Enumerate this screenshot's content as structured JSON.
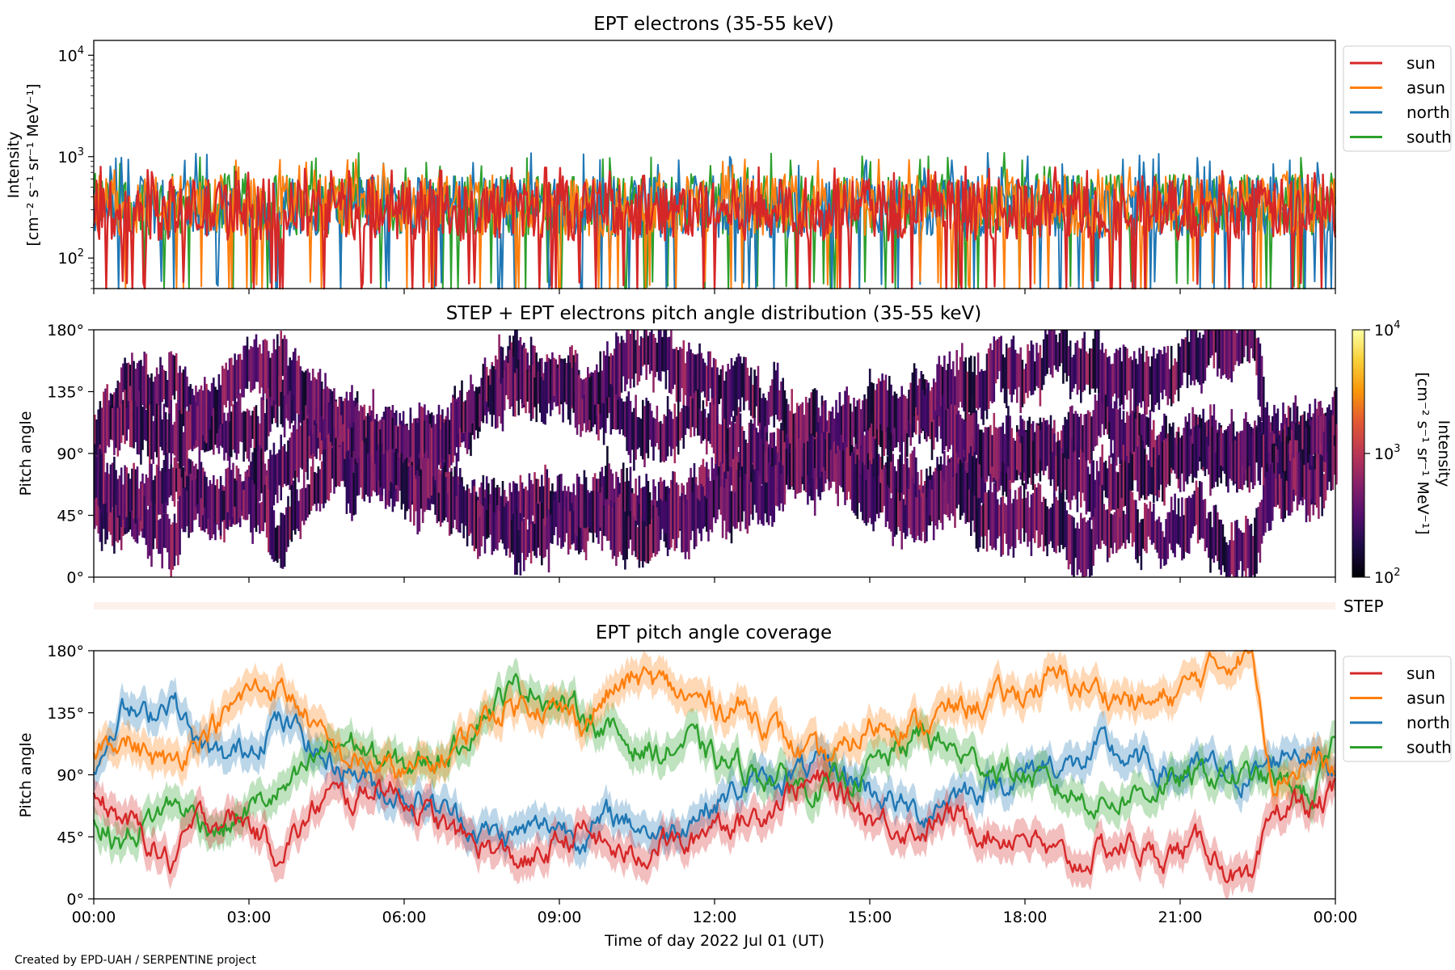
{
  "credit": "Created by EPD-UAH / SERPENTINE project",
  "xlabel": "Time of day 2022 Jul 01 (UT)",
  "x_ticks": [
    "00:00",
    "03:00",
    "06:00",
    "09:00",
    "12:00",
    "15:00",
    "18:00",
    "21:00",
    "00:00"
  ],
  "step_label": "STEP",
  "colors": {
    "sun": "#d62728",
    "asun": "#ff7f0e",
    "north": "#1f77b4",
    "south": "#2ca02c",
    "step_band": "#fdf1ec"
  },
  "chart_data": [
    {
      "type": "line",
      "title": "EPT electrons (35-55 keV)",
      "ylabel_line1": "Intensity",
      "ylabel_line2": "[cm⁻² s⁻¹ sr⁻¹ MeV⁻¹]",
      "yscale": "log",
      "ylim": [
        50,
        14000
      ],
      "y_ticks": [
        {
          "value": 100,
          "base": "10",
          "exp": "2"
        },
        {
          "value": 1000,
          "base": "10",
          "exp": "3"
        },
        {
          "value": 10000,
          "base": "10",
          "exp": "4"
        }
      ],
      "xlim_hours": [
        0,
        24
      ],
      "legend": [
        "sun",
        "asun",
        "north",
        "south"
      ],
      "legend_position": "outside-top-right",
      "series": [
        {
          "name": "sun",
          "typical": 300,
          "min": 60,
          "max": 800
        },
        {
          "name": "asun",
          "typical": 330,
          "min": 60,
          "max": 950
        },
        {
          "name": "north",
          "typical": 320,
          "min": 60,
          "max": 1100
        },
        {
          "name": "south",
          "typical": 340,
          "min": 60,
          "max": 1100
        }
      ]
    },
    {
      "type": "heatmap",
      "title": "STEP + EPT electrons pitch angle distribution (35-55 keV)",
      "ylabel": "Pitch angle",
      "ylim": [
        0,
        180
      ],
      "y_ticks": [
        "0°",
        "45°",
        "90°",
        "135°",
        "180°"
      ],
      "colorbar": {
        "label_line1": "Intensity",
        "label_line2": "[cm⁻² s⁻¹ sr⁻¹ MeV⁻¹]",
        "scale": "log",
        "range": [
          100,
          10000
        ],
        "ticks": [
          {
            "value": 100,
            "base": "10",
            "exp": "2"
          },
          {
            "value": 1000,
            "base": "10",
            "exp": "3"
          },
          {
            "value": 10000,
            "base": "10",
            "exp": "4"
          }
        ],
        "colormap": "inferno"
      }
    },
    {
      "type": "line",
      "title": "EPT pitch angle coverage",
      "ylabel": "Pitch angle",
      "ylim": [
        0,
        180
      ],
      "y_ticks": [
        "0°",
        "45°",
        "90°",
        "135°",
        "180°"
      ],
      "xlim_hours": [
        0,
        24
      ],
      "legend": [
        "sun",
        "asun",
        "north",
        "south"
      ],
      "legend_position": "outside-top-right",
      "shaded_bands": true,
      "series": [
        {
          "name": "sun",
          "hours": [
            0,
            0.5,
            1,
            1.5,
            2,
            2.5,
            3,
            3.5,
            4,
            4.5,
            5,
            5.5,
            6,
            6.5,
            7,
            7.5,
            8,
            8.5,
            9,
            9.5,
            10,
            10.5,
            11,
            11.5,
            12,
            12.5,
            13,
            13.5,
            14,
            14.5,
            15,
            15.5,
            16,
            16.5,
            17,
            17.5,
            18,
            18.5,
            19,
            19.5,
            20,
            20.5,
            21,
            21.5,
            22,
            22.2,
            22.4,
            22.8,
            23.2,
            23.6,
            24
          ],
          "values": [
            70,
            60,
            45,
            25,
            55,
            60,
            55,
            35,
            50,
            75,
            70,
            85,
            75,
            60,
            45,
            40,
            30,
            25,
            40,
            50,
            35,
            30,
            45,
            35,
            60,
            55,
            65,
            80,
            85,
            75,
            60,
            55,
            50,
            60,
            55,
            45,
            50,
            30,
            25,
            35,
            40,
            30,
            35,
            40,
            20,
            10,
            5,
            60,
            70,
            65,
            75
          ]
        },
        {
          "name": "asun",
          "hours": [
            0,
            0.5,
            1,
            1.5,
            2,
            2.5,
            3,
            3.5,
            4,
            4.5,
            5,
            5.5,
            6,
            6.5,
            7,
            7.5,
            8,
            8.5,
            9,
            9.5,
            10,
            10.5,
            11,
            11.5,
            12,
            12.5,
            13,
            13.5,
            14,
            14.5,
            15,
            15.5,
            16,
            16.5,
            17,
            17.5,
            18,
            18.5,
            19,
            19.5,
            20,
            20.5,
            21,
            21.5,
            22,
            22.2,
            22.4,
            22.8,
            23.2,
            23.6,
            24
          ],
          "values": [
            110,
            120,
            105,
            95,
            120,
            130,
            150,
            155,
            140,
            110,
            100,
            95,
            90,
            95,
            110,
            130,
            140,
            145,
            135,
            130,
            150,
            160,
            155,
            145,
            140,
            140,
            130,
            110,
            100,
            105,
            125,
            130,
            125,
            135,
            140,
            145,
            150,
            160,
            155,
            150,
            145,
            140,
            150,
            165,
            175,
            176,
            178,
            90,
            95,
            100,
            90
          ]
        },
        {
          "name": "north",
          "hours": [
            0,
            0.5,
            1,
            1.5,
            2,
            2.5,
            3,
            3.5,
            4,
            4.5,
            5,
            5.5,
            6,
            6.5,
            7,
            7.5,
            8,
            8.5,
            9,
            9.5,
            10,
            10.5,
            11,
            11.5,
            12,
            12.5,
            13,
            13.5,
            14,
            14.5,
            15,
            15.5,
            16,
            16.5,
            17,
            17.5,
            18,
            18.5,
            19,
            19.5,
            20,
            20.5,
            21,
            21.5,
            22,
            22.2,
            22.4,
            22.8,
            23.2,
            23.6,
            24
          ],
          "values": [
            90,
            140,
            130,
            150,
            110,
            100,
            110,
            130,
            120,
            100,
            95,
            80,
            75,
            70,
            60,
            50,
            45,
            50,
            55,
            45,
            60,
            55,
            45,
            60,
            70,
            80,
            85,
            90,
            95,
            90,
            80,
            70,
            60,
            75,
            80,
            85,
            90,
            100,
            95,
            110,
            100,
            95,
            90,
            95,
            90,
            88,
            88,
            100,
            110,
            105,
            95
          ]
        },
        {
          "name": "south",
          "hours": [
            0,
            0.5,
            1,
            1.5,
            2,
            2.5,
            3,
            3.5,
            4,
            4.5,
            5,
            5.5,
            6,
            6.5,
            7,
            7.5,
            8,
            8.5,
            9,
            9.5,
            10,
            10.5,
            11,
            11.5,
            12,
            12.5,
            13,
            13.5,
            14,
            14.5,
            15,
            15.5,
            16,
            16.5,
            17,
            17.5,
            18,
            18.5,
            19,
            19.5,
            20,
            20.5,
            21,
            21.5,
            22,
            22.2,
            22.4,
            22.8,
            23.2,
            23.6,
            24
          ],
          "values": [
            60,
            40,
            55,
            70,
            60,
            50,
            65,
            75,
            85,
            110,
            115,
            100,
            95,
            100,
            110,
            135,
            150,
            155,
            140,
            135,
            120,
            110,
            105,
            115,
            100,
            95,
            90,
            85,
            80,
            85,
            95,
            105,
            120,
            110,
            100,
            95,
            90,
            80,
            75,
            70,
            75,
            80,
            85,
            90,
            88,
            87,
            88,
            85,
            80,
            75,
            110
          ]
        }
      ]
    }
  ]
}
